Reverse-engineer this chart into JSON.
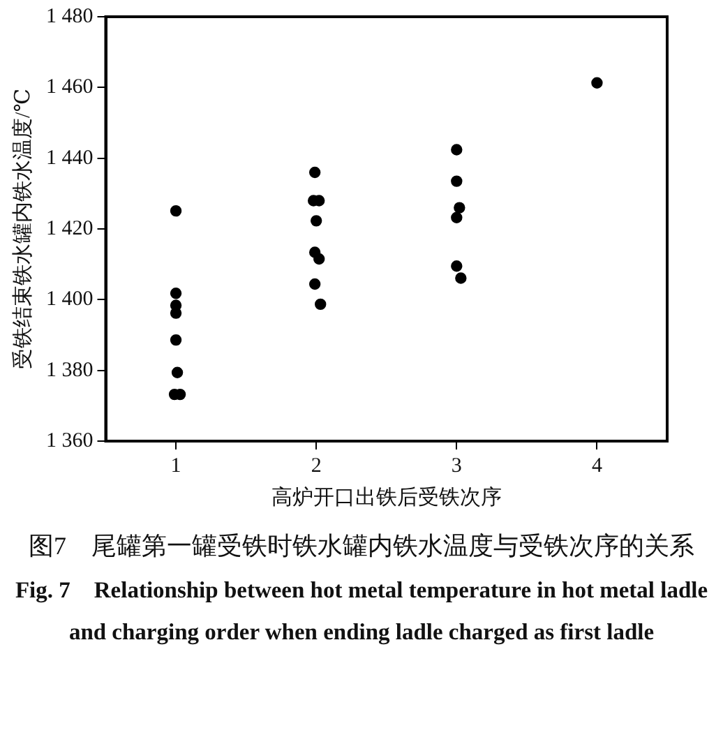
{
  "chart_data": {
    "type": "scatter",
    "title": "图7　尾罐第一罐受铁时铁水罐内铁水温度与受铁次序的关系",
    "subtitle": "Fig. 7　Relationship between hot metal temperature in hot metal ladle and charging order when ending ladle charged as first ladle",
    "xlabel": "高炉开口出铁后受铁次序",
    "ylabel": "受铁结束铁水罐内铁水温度/℃",
    "marker": "circle",
    "series": [
      {
        "color": "#000000",
        "x": [
          1,
          1,
          1,
          1,
          1,
          1.01,
          0.99,
          1.03,
          1.99,
          1.98,
          2.02,
          2,
          1.99,
          2.02,
          1.99,
          2.03,
          3,
          3,
          3.02,
          3,
          3,
          3.03,
          4
        ],
        "values": [
          1425.1,
          1401.8,
          1398.4,
          1396.2,
          1388.6,
          1379.4,
          1373.2,
          1373.2,
          1436,
          1428,
          1428,
          1422.3,
          1413.4,
          1411.5,
          1404.4,
          1398.7,
          1442.4,
          1433.5,
          1426,
          1423.2,
          1409.5,
          1406.1,
          1461.3
        ]
      }
    ],
    "xlim": [
      0.5,
      4.5
    ],
    "xticks": [
      1,
      2,
      3,
      4
    ],
    "ylim": [
      1360,
      1480
    ],
    "yticks": [
      {
        "value": 1360,
        "label": "1 360"
      },
      {
        "value": 1380,
        "label": "1 380"
      },
      {
        "value": 1400,
        "label": "1 400"
      },
      {
        "value": 1420,
        "label": "1 420"
      },
      {
        "value": 1440,
        "label": "1 440"
      },
      {
        "value": 1460,
        "label": "1 460"
      },
      {
        "value": 1480,
        "label": "1 480"
      }
    ]
  }
}
